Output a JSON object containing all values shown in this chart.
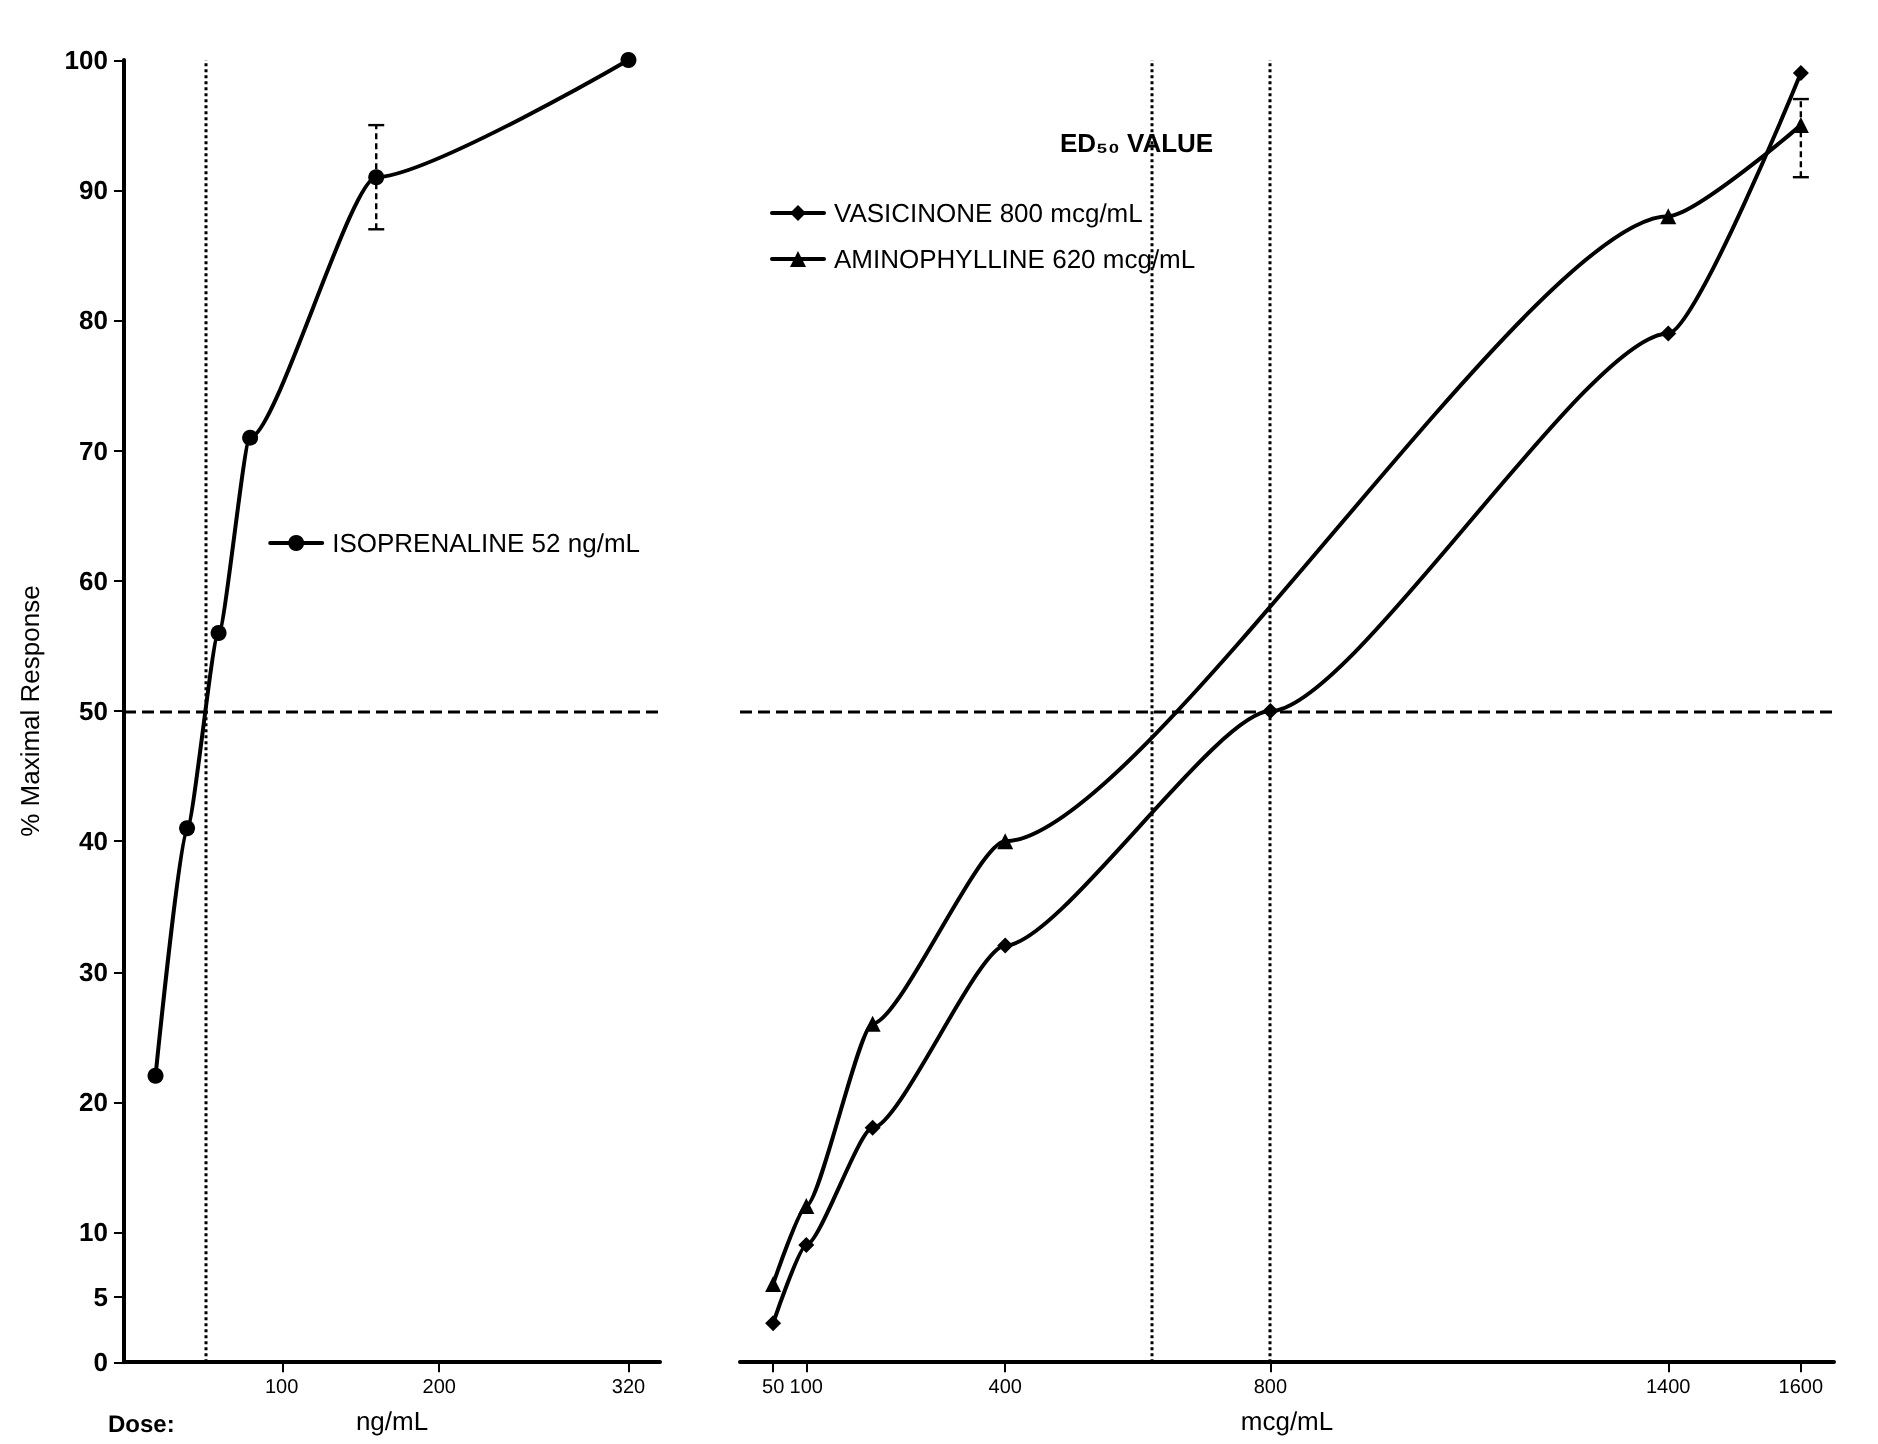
{
  "chart_data": [
    {
      "type": "line",
      "ylabel": "% Maximal Response",
      "xlabel": "ng/mL",
      "annotations": [
        "Dose:"
      ],
      "xlim": [
        0,
        340
      ],
      "xticks": [
        100,
        200,
        320
      ],
      "ylim": [
        0,
        100
      ],
      "yticks": [
        0,
        5,
        10,
        20,
        30,
        40,
        50,
        60,
        70,
        80,
        90,
        100
      ],
      "legend": "right",
      "grid": false,
      "line_style": "solid",
      "series": [
        {
          "name": "ISOPRENALINE 52 ng/mL",
          "color": "#000000",
          "marker": "circle",
          "x": [
            20,
            40,
            60,
            80,
            160,
            320
          ],
          "values": [
            22,
            41,
            56,
            71,
            91,
            100
          ],
          "errors": [
            null,
            null,
            null,
            null,
            [
              87,
              95
            ],
            null
          ]
        }
      ],
      "ref_lines": [
        {
          "axis": "y",
          "value": 50,
          "line_style": "dashed"
        },
        {
          "axis": "x",
          "value": 52,
          "line_style": "dotted"
        }
      ]
    },
    {
      "type": "line",
      "xlabel": "mcg/mL",
      "legend_title": "ED₅₀ VALUE",
      "xlim": [
        0,
        1650
      ],
      "xticks": [
        50,
        100,
        400,
        800,
        1400,
        1600
      ],
      "ylim": [
        0,
        100
      ],
      "yticks": [
        0,
        5,
        10,
        20,
        30,
        40,
        50,
        60,
        70,
        80,
        90,
        100
      ],
      "tick_labels": "x",
      "legend": "top left",
      "grid": false,
      "line_style": "solid",
      "series": [
        {
          "name": "VASICINONE 800 mcg/mL",
          "color": "#000000",
          "marker": "diamond",
          "x": [
            50,
            100,
            200,
            400,
            800,
            1400,
            1600
          ],
          "values": [
            3,
            9,
            18,
            32,
            50,
            79,
            99
          ]
        },
        {
          "name": "AMINOPHYLLINE 620 mcg/mL",
          "color": "#000000",
          "marker": "triangle",
          "x": [
            50,
            100,
            200,
            400,
            1400,
            1600
          ],
          "values": [
            6,
            12,
            26,
            40,
            88,
            95
          ],
          "errors": [
            null,
            null,
            null,
            null,
            null,
            [
              91,
              97
            ]
          ]
        }
      ],
      "ref_lines": [
        {
          "axis": "y",
          "value": 50,
          "line_style": "dashed"
        },
        {
          "axis": "x",
          "value": 620,
          "line_style": "dotted"
        },
        {
          "axis": "x",
          "value": 800,
          "line_style": "dotted"
        }
      ]
    }
  ]
}
